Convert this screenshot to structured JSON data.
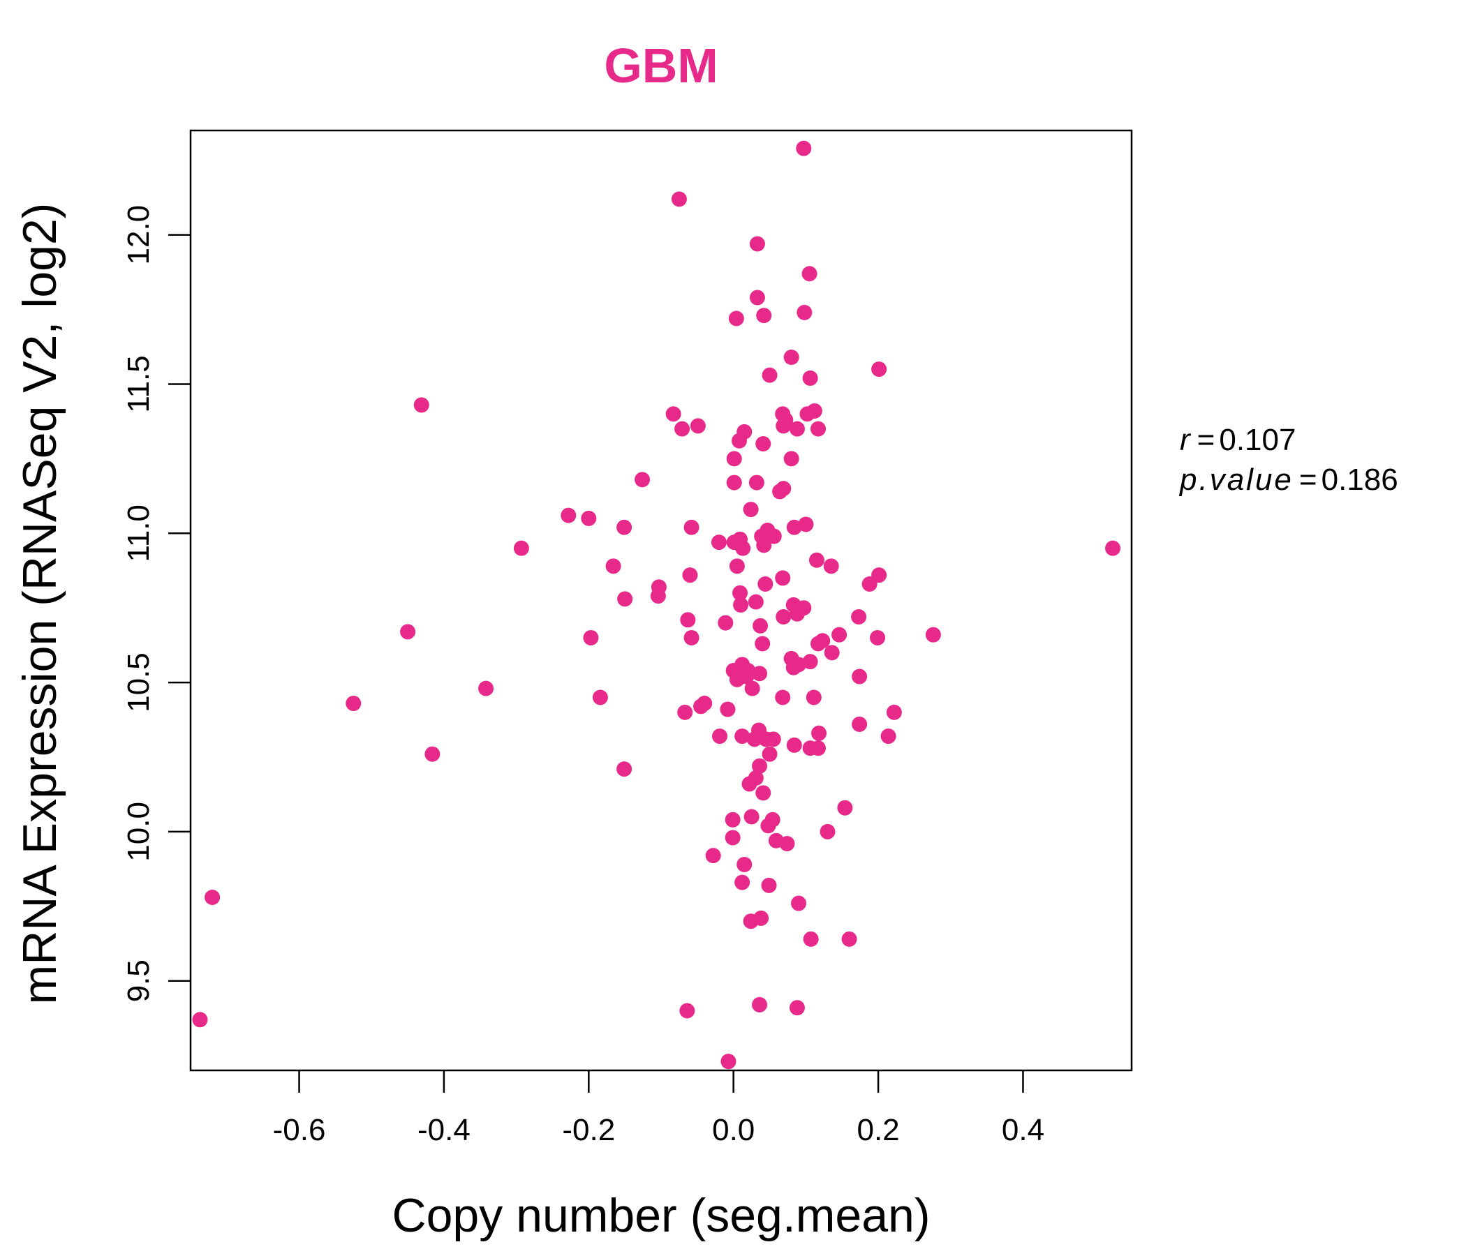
{
  "chart_data": {
    "type": "scatter",
    "title": "GBM",
    "xlabel": "Copy number (seg.mean)",
    "ylabel": "mRNA Expression (RNASeq V2, log2)",
    "xlim": [
      -0.75,
      0.55
    ],
    "ylim": [
      9.2,
      12.35
    ],
    "xticks": [
      "-0.6",
      "-0.4",
      "-0.2",
      "0.0",
      "0.2",
      "0.4"
    ],
    "yticks": [
      "9.5",
      "10.0",
      "10.5",
      "11.0",
      "11.5",
      "12.0"
    ],
    "grid": false,
    "legend": "none",
    "colors": {
      "points": "#E7298A",
      "title": "#E7298A",
      "axis": "#000000"
    },
    "annotation": {
      "r_label": "r",
      "r_value": "0.107",
      "p_label": "p.value",
      "p_value": "0.186"
    },
    "points": [
      [
        0.097,
        12.29
      ],
      [
        -0.075,
        12.12
      ],
      [
        0.033,
        11.97
      ],
      [
        0.105,
        11.87
      ],
      [
        0.033,
        11.79
      ],
      [
        0.098,
        11.74
      ],
      [
        0.042,
        11.73
      ],
      [
        0.004,
        11.72
      ],
      [
        0.08,
        11.59
      ],
      [
        0.201,
        11.55
      ],
      [
        0.05,
        11.53
      ],
      [
        0.106,
        11.52
      ],
      [
        -0.431,
        11.43
      ],
      [
        0.068,
        11.4
      ],
      [
        0.112,
        11.41
      ],
      [
        0.102,
        11.4
      ],
      [
        -0.083,
        11.4
      ],
      [
        0.072,
        11.38
      ],
      [
        0.069,
        11.36
      ],
      [
        0.088,
        11.35
      ],
      [
        0.117,
        11.35
      ],
      [
        -0.049,
        11.36
      ],
      [
        -0.071,
        11.35
      ],
      [
        0.015,
        11.34
      ],
      [
        0.008,
        11.31
      ],
      [
        0.041,
        11.3
      ],
      [
        0.001,
        11.25
      ],
      [
        0.08,
        11.25
      ],
      [
        -0.126,
        11.18
      ],
      [
        0.001,
        11.17
      ],
      [
        0.032,
        11.17
      ],
      [
        0.069,
        11.15
      ],
      [
        0.064,
        11.14
      ],
      [
        0.024,
        11.08
      ],
      [
        -0.228,
        11.06
      ],
      [
        -0.2,
        11.05
      ],
      [
        0.1,
        11.03
      ],
      [
        0.084,
        11.02
      ],
      [
        -0.151,
        11.02
      ],
      [
        -0.058,
        11.02
      ],
      [
        0.047,
        11.01
      ],
      [
        0.056,
        10.99
      ],
      [
        0.039,
        10.99
      ],
      [
        0.009,
        10.98
      ],
      [
        -0.02,
        10.97
      ],
      [
        0.001,
        10.97
      ],
      [
        0.013,
        10.95
      ],
      [
        -0.293,
        10.95
      ],
      [
        0.042,
        10.96
      ],
      [
        0.524,
        10.95
      ],
      [
        0.115,
        10.91
      ],
      [
        0.135,
        10.89
      ],
      [
        -0.166,
        10.89
      ],
      [
        0.005,
        10.89
      ],
      [
        0.068,
        10.85
      ],
      [
        0.201,
        10.86
      ],
      [
        -0.06,
        10.86
      ],
      [
        0.188,
        10.83
      ],
      [
        0.044,
        10.83
      ],
      [
        -0.103,
        10.82
      ],
      [
        0.009,
        10.8
      ],
      [
        -0.104,
        10.79
      ],
      [
        -0.15,
        10.78
      ],
      [
        0.031,
        10.77
      ],
      [
        0.01,
        10.76
      ],
      [
        0.083,
        10.76
      ],
      [
        0.097,
        10.75
      ],
      [
        0.088,
        10.73
      ],
      [
        0.069,
        10.72
      ],
      [
        -0.063,
        10.71
      ],
      [
        0.173,
        10.72
      ],
      [
        -0.011,
        10.7
      ],
      [
        0.037,
        10.69
      ],
      [
        -0.45,
        10.67
      ],
      [
        0.276,
        10.66
      ],
      [
        -0.197,
        10.65
      ],
      [
        0.199,
        10.65
      ],
      [
        -0.058,
        10.65
      ],
      [
        0.146,
        10.66
      ],
      [
        0.123,
        10.64
      ],
      [
        0.117,
        10.63
      ],
      [
        0.04,
        10.63
      ],
      [
        0.136,
        10.6
      ],
      [
        0.08,
        10.58
      ],
      [
        0.09,
        10.56
      ],
      [
        0.106,
        10.57
      ],
      [
        0.083,
        10.55
      ],
      [
        0.012,
        10.56
      ],
      [
        0.0,
        10.54
      ],
      [
        0.02,
        10.54
      ],
      [
        0.036,
        10.53
      ],
      [
        0.005,
        10.51
      ],
      [
        0.018,
        10.52
      ],
      [
        0.174,
        10.52
      ],
      [
        0.026,
        10.48
      ],
      [
        -0.342,
        10.48
      ],
      [
        0.068,
        10.45
      ],
      [
        0.111,
        10.45
      ],
      [
        -0.184,
        10.45
      ],
      [
        -0.04,
        10.43
      ],
      [
        -0.525,
        10.43
      ],
      [
        -0.045,
        10.42
      ],
      [
        -0.008,
        10.41
      ],
      [
        0.222,
        10.4
      ],
      [
        -0.067,
        10.4
      ],
      [
        0.174,
        10.36
      ],
      [
        0.035,
        10.34
      ],
      [
        0.118,
        10.33
      ],
      [
        -0.019,
        10.32
      ],
      [
        0.214,
        10.32
      ],
      [
        0.012,
        10.32
      ],
      [
        0.055,
        10.31
      ],
      [
        0.029,
        10.31
      ],
      [
        0.045,
        10.31
      ],
      [
        0.084,
        10.29
      ],
      [
        0.106,
        10.28
      ],
      [
        0.117,
        10.28
      ],
      [
        0.05,
        10.26
      ],
      [
        -0.416,
        10.26
      ],
      [
        0.036,
        10.22
      ],
      [
        -0.151,
        10.21
      ],
      [
        0.031,
        10.18
      ],
      [
        0.022,
        10.16
      ],
      [
        0.041,
        10.13
      ],
      [
        0.154,
        10.08
      ],
      [
        0.025,
        10.05
      ],
      [
        0.054,
        10.04
      ],
      [
        -0.001,
        10.04
      ],
      [
        0.048,
        10.02
      ],
      [
        0.13,
        10.0
      ],
      [
        -0.001,
        9.98
      ],
      [
        0.059,
        9.97
      ],
      [
        0.074,
        9.96
      ],
      [
        -0.028,
        9.92
      ],
      [
        0.015,
        9.89
      ],
      [
        0.012,
        9.83
      ],
      [
        0.049,
        9.82
      ],
      [
        -0.72,
        9.78
      ],
      [
        0.09,
        9.76
      ],
      [
        0.038,
        9.71
      ],
      [
        0.024,
        9.7
      ],
      [
        0.107,
        9.64
      ],
      [
        0.16,
        9.64
      ],
      [
        0.036,
        9.42
      ],
      [
        0.088,
        9.41
      ],
      [
        -0.064,
        9.4
      ],
      [
        -0.737,
        9.37
      ],
      [
        -0.007,
        9.23
      ]
    ]
  }
}
